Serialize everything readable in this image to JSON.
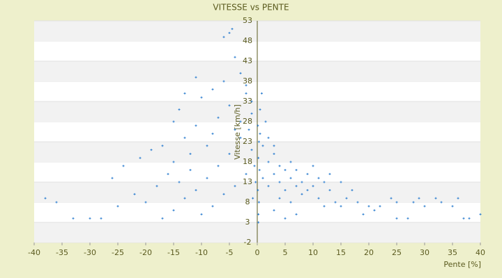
{
  "chart_data": {
    "type": "scatter",
    "title": "VITESSE vs PENTE",
    "x_label": "Pente [%]",
    "y_label": "Vitesse [km/h]",
    "color": "#2f7fd0",
    "xlim": [
      -40,
      40
    ],
    "xticks": [
      -40,
      -35,
      -30,
      -25,
      -20,
      -15,
      -10,
      -5,
      0,
      5,
      10,
      15,
      20,
      25,
      30,
      35,
      40
    ],
    "ylim": [
      -2,
      53
    ],
    "yticks": [
      -2,
      3,
      8,
      13,
      18,
      23,
      28,
      33,
      38,
      43,
      48,
      53
    ],
    "grid": true,
    "x": [
      1,
      2,
      3,
      4,
      5,
      6,
      7,
      8,
      9,
      10,
      2,
      3,
      4,
      5,
      1,
      0.5,
      1.5,
      2,
      3,
      6,
      7,
      8,
      11,
      12,
      13,
      14,
      15,
      16,
      18,
      20,
      22,
      25,
      28,
      30,
      33,
      35,
      12,
      9,
      10,
      4,
      3,
      5,
      6,
      7,
      11,
      13,
      15,
      17,
      -1,
      -2,
      -3,
      -4,
      -5,
      -6,
      -7,
      -8,
      -9,
      -10,
      -11,
      -12,
      -13,
      -14,
      -15,
      -16,
      -17,
      -18,
      -20,
      -22,
      -25,
      -28,
      -30,
      -33,
      -36,
      -38,
      -5,
      -6,
      -4,
      -3,
      -2,
      -1,
      -3,
      -5,
      -7,
      -9,
      -11,
      -13,
      -15,
      -17,
      -2,
      -4,
      -6,
      -8,
      -10,
      -12,
      -14,
      -8,
      -11,
      -13,
      -15,
      -19,
      -21,
      -24,
      -26,
      -4.5,
      0.2,
      0.3,
      0.1,
      0.4,
      0.2,
      0.3,
      0.1,
      0.5,
      0.8,
      0.2,
      -0.3,
      -0.5,
      -1,
      -1.5,
      -0.8,
      37,
      38,
      40,
      27,
      25,
      19,
      21,
      24,
      29,
      32,
      36
    ],
    "values": [
      14,
      12,
      15,
      13,
      11,
      14,
      12,
      13,
      11,
      12,
      18,
      20,
      17,
      16,
      22,
      25,
      28,
      24,
      22,
      18,
      16,
      10,
      9,
      13,
      11,
      8,
      7,
      9,
      8,
      7,
      7,
      8,
      8,
      7,
      8,
      7,
      7,
      15,
      17,
      9,
      6,
      4,
      8,
      5,
      14,
      15,
      13,
      11,
      30,
      35,
      28,
      26,
      32,
      38,
      29,
      25,
      22,
      34,
      27,
      20,
      24,
      31,
      18,
      15,
      22,
      12,
      8,
      10,
      7,
      4,
      4,
      4,
      8,
      9,
      50,
      49,
      44,
      40,
      37,
      33,
      24,
      20,
      17,
      14,
      11,
      9,
      6,
      4,
      15,
      12,
      10,
      7,
      5,
      16,
      13,
      36,
      39,
      35,
      28,
      21,
      19,
      17,
      14,
      51,
      5,
      8,
      11,
      16,
      19,
      23,
      27,
      31,
      35,
      3,
      13,
      17,
      21,
      26,
      9,
      4,
      4,
      5,
      4,
      4,
      5,
      6,
      9,
      9,
      9,
      9
    ]
  }
}
